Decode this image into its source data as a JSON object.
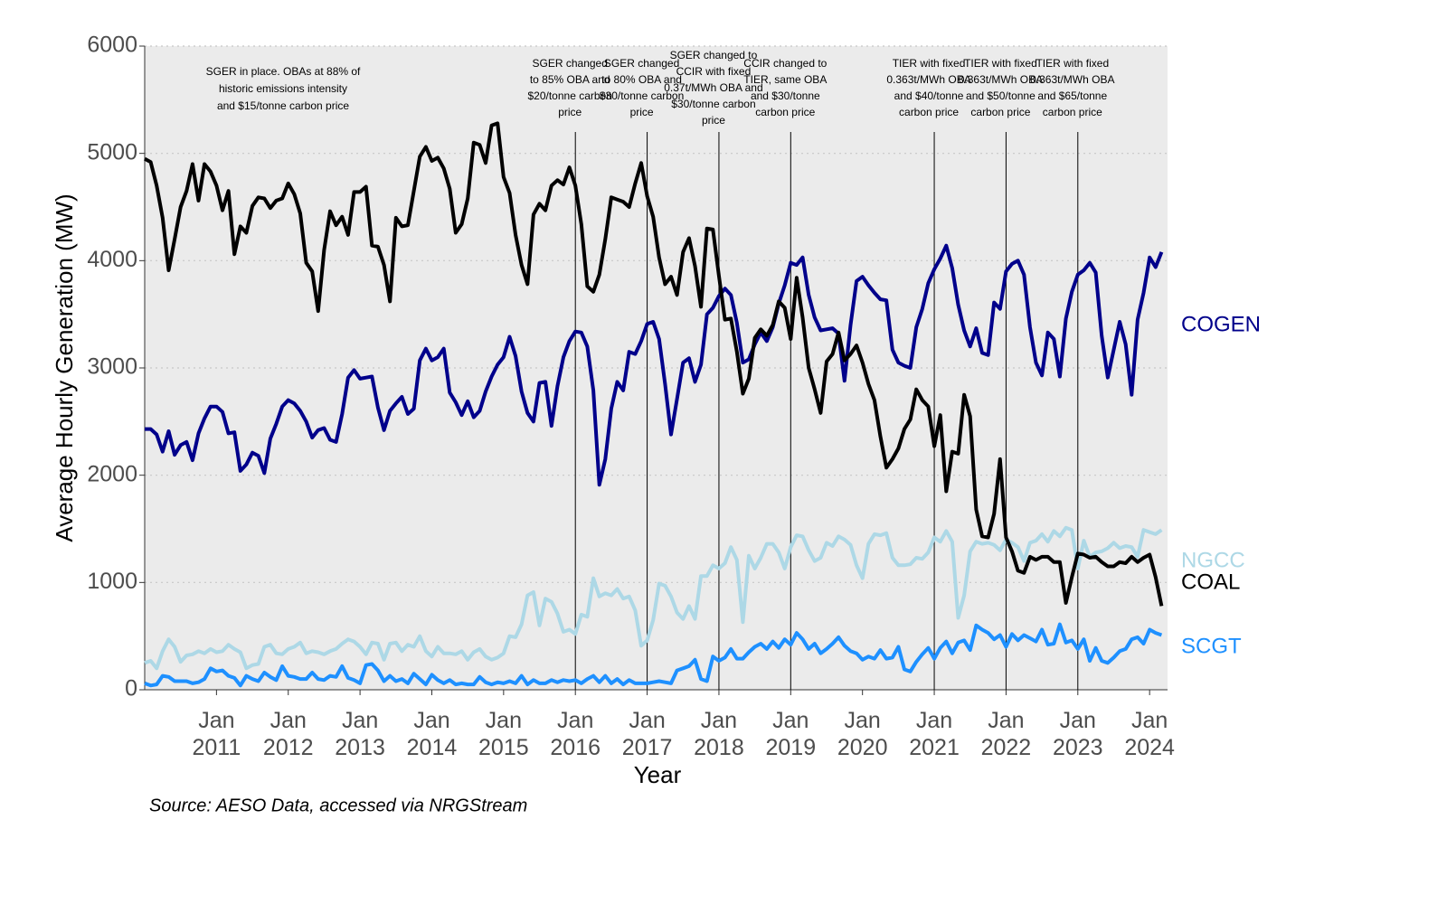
{
  "chart_data": {
    "type": "line",
    "y_label": "Average Hourly Generation (MW)",
    "x_label": "Year",
    "caption": "Source: AESO Data, accessed via NRGStream",
    "x": [
      "2010-01",
      "2010-02",
      "2010-03",
      "2010-04",
      "2010-05",
      "2010-06",
      "2010-07",
      "2010-08",
      "2010-09",
      "2010-10",
      "2010-11",
      "2010-12",
      "2011-01",
      "2011-02",
      "2011-03",
      "2011-04",
      "2011-05",
      "2011-06",
      "2011-07",
      "2011-08",
      "2011-09",
      "2011-10",
      "2011-11",
      "2011-12",
      "2012-01",
      "2012-02",
      "2012-03",
      "2012-04",
      "2012-05",
      "2012-06",
      "2012-07",
      "2012-08",
      "2012-09",
      "2012-10",
      "2012-11",
      "2012-12",
      "2013-01",
      "2013-02",
      "2013-03",
      "2013-04",
      "2013-05",
      "2013-06",
      "2013-07",
      "2013-08",
      "2013-09",
      "2013-10",
      "2013-11",
      "2013-12",
      "2014-01",
      "2014-02",
      "2014-03",
      "2014-04",
      "2014-05",
      "2014-06",
      "2014-07",
      "2014-08",
      "2014-09",
      "2014-10",
      "2014-11",
      "2014-12",
      "2015-01",
      "2015-02",
      "2015-03",
      "2015-04",
      "2015-05",
      "2015-06",
      "2015-07",
      "2015-08",
      "2015-09",
      "2015-10",
      "2015-11",
      "2015-12",
      "2016-01",
      "2016-02",
      "2016-03",
      "2016-04",
      "2016-05",
      "2016-06",
      "2016-07",
      "2016-08",
      "2016-09",
      "2016-10",
      "2016-11",
      "2016-12",
      "2017-01",
      "2017-02",
      "2017-03",
      "2017-04",
      "2017-05",
      "2017-06",
      "2017-07",
      "2017-08",
      "2017-09",
      "2017-10",
      "2017-11",
      "2017-12",
      "2018-01",
      "2018-02",
      "2018-03",
      "2018-04",
      "2018-05",
      "2018-06",
      "2018-07",
      "2018-08",
      "2018-09",
      "2018-10",
      "2018-11",
      "2018-12",
      "2019-01",
      "2019-02",
      "2019-03",
      "2019-04",
      "2019-05",
      "2019-06",
      "2019-07",
      "2019-08",
      "2019-09",
      "2019-10",
      "2019-11",
      "2019-12",
      "2020-01",
      "2020-02",
      "2020-03",
      "2020-04",
      "2020-05",
      "2020-06",
      "2020-07",
      "2020-08",
      "2020-09",
      "2020-10",
      "2020-11",
      "2020-12",
      "2021-01",
      "2021-02",
      "2021-03",
      "2021-04",
      "2021-05",
      "2021-06",
      "2021-07",
      "2021-08",
      "2021-09",
      "2021-10",
      "2021-11",
      "2021-12",
      "2022-01",
      "2022-02",
      "2022-03",
      "2022-04",
      "2022-05",
      "2022-06",
      "2022-07",
      "2022-08",
      "2022-09",
      "2022-10",
      "2022-11",
      "2022-12",
      "2023-01",
      "2023-02",
      "2023-03",
      "2023-04",
      "2023-05",
      "2023-06",
      "2023-07",
      "2023-08",
      "2023-09",
      "2023-10",
      "2023-11",
      "2023-12",
      "2024-01",
      "2024-02",
      "2024-03"
    ],
    "series": [
      {
        "name": "COGEN",
        "color": "#00008b",
        "values": [
          2430,
          2430,
          2380,
          2220,
          2410,
          2190,
          2280,
          2310,
          2140,
          2390,
          2530,
          2640,
          2640,
          2590,
          2390,
          2400,
          2040,
          2100,
          2210,
          2180,
          2020,
          2340,
          2480,
          2640,
          2700,
          2670,
          2600,
          2500,
          2350,
          2420,
          2440,
          2330,
          2310,
          2570,
          2910,
          2980,
          2900,
          2910,
          2920,
          2630,
          2420,
          2600,
          2670,
          2730,
          2570,
          2620,
          3070,
          3180,
          3070,
          3100,
          3180,
          2770,
          2680,
          2560,
          2690,
          2540,
          2600,
          2780,
          2920,
          3030,
          3100,
          3290,
          3110,
          2780,
          2580,
          2500,
          2860,
          2870,
          2460,
          2830,
          3100,
          3250,
          3340,
          3330,
          3200,
          2790,
          1910,
          2150,
          2620,
          2870,
          2790,
          3150,
          3130,
          3250,
          3410,
          3430,
          3270,
          2850,
          2380,
          2710,
          3050,
          3090,
          2870,
          3030,
          3500,
          3560,
          3670,
          3740,
          3680,
          3420,
          3050,
          3080,
          3220,
          3330,
          3250,
          3380,
          3600,
          3770,
          3980,
          3960,
          4030,
          3680,
          3470,
          3350,
          3360,
          3370,
          3320,
          2880,
          3400,
          3810,
          3850,
          3770,
          3700,
          3640,
          3630,
          3170,
          3050,
          3020,
          3000,
          3380,
          3550,
          3790,
          3920,
          4020,
          4140,
          3930,
          3590,
          3350,
          3200,
          3370,
          3140,
          3120,
          3610,
          3550,
          3900,
          3970,
          4000,
          3870,
          3380,
          3050,
          2930,
          3330,
          3270,
          2920,
          3460,
          3710,
          3870,
          3910,
          3980,
          3890,
          3300,
          2910,
          3170,
          3430,
          3220,
          2750,
          3450,
          3700,
          4030,
          3940,
          4080
        ]
      },
      {
        "name": "NGCC",
        "color": "#add8e6",
        "values": [
          250,
          270,
          200,
          360,
          470,
          400,
          260,
          320,
          330,
          360,
          340,
          380,
          350,
          360,
          420,
          380,
          350,
          200,
          230,
          240,
          400,
          420,
          340,
          330,
          380,
          400,
          440,
          340,
          360,
          350,
          330,
          360,
          380,
          430,
          470,
          450,
          400,
          330,
          440,
          430,
          280,
          430,
          440,
          360,
          420,
          400,
          500,
          360,
          310,
          400,
          340,
          340,
          330,
          360,
          280,
          350,
          380,
          310,
          280,
          300,
          340,
          500,
          490,
          610,
          880,
          910,
          600,
          850,
          820,
          710,
          540,
          560,
          520,
          700,
          680,
          1040,
          870,
          900,
          880,
          940,
          850,
          870,
          740,
          410,
          460,
          650,
          990,
          970,
          870,
          720,
          660,
          780,
          660,
          1060,
          1060,
          1160,
          1130,
          1180,
          1330,
          1210,
          630,
          1250,
          1130,
          1230,
          1360,
          1360,
          1280,
          1130,
          1330,
          1440,
          1430,
          1300,
          1200,
          1230,
          1370,
          1340,
          1430,
          1400,
          1350,
          1160,
          1040,
          1360,
          1450,
          1440,
          1460,
          1230,
          1160,
          1160,
          1170,
          1230,
          1220,
          1280,
          1420,
          1380,
          1480,
          1380,
          670,
          880,
          1290,
          1380,
          1360,
          1370,
          1350,
          1300,
          1400,
          1370,
          1330,
          1200,
          1370,
          1390,
          1450,
          1380,
          1480,
          1430,
          1510,
          1490,
          1130,
          1390,
          1240,
          1280,
          1290,
          1320,
          1370,
          1320,
          1340,
          1330,
          1240,
          1490,
          1470,
          1450,
          1490
        ]
      },
      {
        "name": "COAL",
        "color": "#000000",
        "values": [
          4950,
          4920,
          4700,
          4400,
          3910,
          4200,
          4500,
          4650,
          4900,
          4560,
          4900,
          4830,
          4700,
          4470,
          4650,
          4060,
          4320,
          4260,
          4510,
          4590,
          4580,
          4490,
          4560,
          4580,
          4720,
          4620,
          4440,
          3980,
          3900,
          3530,
          4100,
          4460,
          4330,
          4410,
          4240,
          4640,
          4640,
          4690,
          4140,
          4130,
          3960,
          3620,
          4400,
          4320,
          4330,
          4650,
          4970,
          5060,
          4930,
          4960,
          4860,
          4670,
          4260,
          4340,
          4580,
          5100,
          5080,
          4910,
          5260,
          5280,
          4780,
          4630,
          4240,
          3960,
          3780,
          4430,
          4530,
          4470,
          4700,
          4750,
          4710,
          4870,
          4700,
          4340,
          3760,
          3710,
          3870,
          4200,
          4590,
          4570,
          4550,
          4500,
          4720,
          4910,
          4600,
          4410,
          4030,
          3780,
          3850,
          3680,
          4080,
          4210,
          3950,
          3570,
          4300,
          4290,
          3860,
          3450,
          3460,
          3150,
          2760,
          2900,
          3280,
          3360,
          3300,
          3400,
          3620,
          3560,
          3270,
          3840,
          3470,
          3000,
          2800,
          2580,
          3060,
          3130,
          3330,
          3070,
          3130,
          3210,
          3050,
          2850,
          2700,
          2360,
          2070,
          2150,
          2250,
          2430,
          2520,
          2800,
          2700,
          2640,
          2270,
          2560,
          1850,
          2220,
          2200,
          2750,
          2550,
          1680,
          1430,
          1420,
          1640,
          2150,
          1420,
          1290,
          1110,
          1090,
          1240,
          1210,
          1240,
          1240,
          1190,
          1190,
          810,
          1050,
          1270,
          1260,
          1230,
          1240,
          1190,
          1150,
          1150,
          1190,
          1180,
          1240,
          1190,
          1230,
          1260,
          1050,
          780
        ]
      },
      {
        "name": "SCGT",
        "color": "#1e90ff",
        "values": [
          60,
          40,
          50,
          130,
          120,
          80,
          80,
          80,
          60,
          70,
          100,
          200,
          170,
          180,
          130,
          110,
          40,
          130,
          100,
          80,
          160,
          120,
          90,
          220,
          130,
          120,
          100,
          100,
          160,
          100,
          90,
          130,
          120,
          220,
          110,
          90,
          60,
          230,
          240,
          180,
          80,
          130,
          80,
          100,
          60,
          150,
          100,
          50,
          140,
          90,
          60,
          90,
          50,
          60,
          50,
          50,
          120,
          70,
          50,
          70,
          60,
          80,
          60,
          130,
          50,
          90,
          60,
          60,
          90,
          70,
          90,
          80,
          90,
          60,
          100,
          130,
          70,
          130,
          60,
          100,
          50,
          90,
          60,
          60,
          60,
          70,
          80,
          70,
          60,
          180,
          200,
          220,
          280,
          100,
          80,
          310,
          270,
          300,
          380,
          290,
          290,
          350,
          400,
          430,
          380,
          450,
          390,
          470,
          420,
          530,
          470,
          380,
          430,
          340,
          380,
          430,
          490,
          410,
          360,
          340,
          280,
          310,
          290,
          370,
          290,
          300,
          400,
          190,
          170,
          260,
          330,
          390,
          290,
          390,
          450,
          340,
          440,
          460,
          370,
          600,
          560,
          530,
          470,
          510,
          400,
          520,
          460,
          510,
          480,
          450,
          560,
          420,
          430,
          610,
          440,
          460,
          380,
          470,
          270,
          390,
          270,
          250,
          300,
          360,
          380,
          470,
          490,
          430,
          560,
          530,
          510
        ]
      }
    ],
    "xlim": [
      "2010-01",
      "2024-04"
    ],
    "xticks": [
      {
        "value": "2011-01",
        "label": "Jan 2011"
      },
      {
        "value": "2012-01",
        "label": "Jan 2012"
      },
      {
        "value": "2013-01",
        "label": "Jan 2013"
      },
      {
        "value": "2014-01",
        "label": "Jan 2014"
      },
      {
        "value": "2015-01",
        "label": "Jan 2015"
      },
      {
        "value": "2016-01",
        "label": "Jan 2016"
      },
      {
        "value": "2017-01",
        "label": "Jan 2017"
      },
      {
        "value": "2018-01",
        "label": "Jan 2018"
      },
      {
        "value": "2019-01",
        "label": "Jan 2019"
      },
      {
        "value": "2020-01",
        "label": "Jan 2020"
      },
      {
        "value": "2021-01",
        "label": "Jan 2021"
      },
      {
        "value": "2022-01",
        "label": "Jan 2022"
      },
      {
        "value": "2023-01",
        "label": "Jan 2023"
      },
      {
        "value": "2024-01",
        "label": "Jan 2024"
      }
    ],
    "ylim": [
      0,
      6000
    ],
    "yticks": [
      0,
      1000,
      2000,
      3000,
      4000,
      5000,
      6000
    ],
    "grid": true,
    "note": [
      "SGER in place. OBAs at 88% of",
      "historic emissions intensity",
      "and $15/tonne carbon price"
    ],
    "annotations": [
      {
        "date": "2016-01",
        "lines": [
          "SGER changed",
          "to 85% OBA and",
          "$20/tonne carbon",
          "price"
        ]
      },
      {
        "date": "2017-01",
        "lines": [
          "SGER changed",
          "to 80% OBA and",
          "$30/tonne carbon",
          "price"
        ]
      },
      {
        "date": "2018-01",
        "lines": [
          "SGER changed to",
          "CCIR with fixed",
          "0.37t/MWh OBA and",
          "$30/tonne carbon",
          "price"
        ]
      },
      {
        "date": "2019-01",
        "lines": [
          "CCIR changed to",
          "TIER, same OBA",
          "and $30/tonne",
          "carbon price"
        ]
      },
      {
        "date": "2021-01",
        "lines": [
          "TIER with fixed",
          "0.363t/MWh OBA",
          "and $40/tonne",
          "carbon price"
        ]
      },
      {
        "date": "2022-01",
        "lines": [
          "TIER with fixed",
          "0.363t/MWh OBA",
          "and $50/tonne",
          "carbon price"
        ]
      },
      {
        "date": "2023-01",
        "lines": [
          "TIER with fixed",
          "0.363t/MWh OBA",
          "and $65/tonne",
          "carbon price"
        ]
      }
    ]
  }
}
